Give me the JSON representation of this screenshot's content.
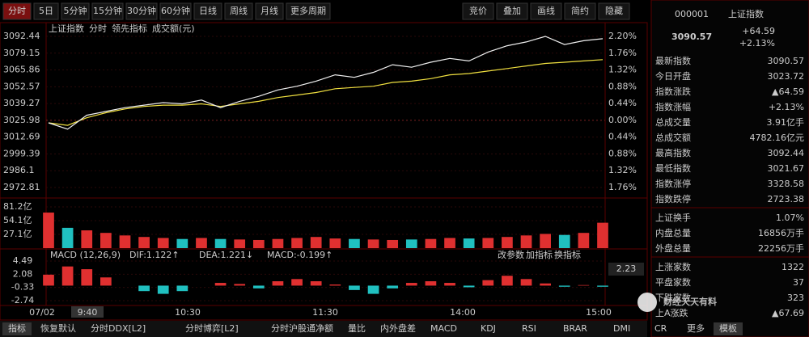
{
  "toolbar": {
    "left": [
      "分时",
      "5日",
      "5分钟",
      "15分钟",
      "30分钟",
      "60分钟",
      "日线",
      "周线",
      "月线",
      "更多周期"
    ],
    "right": [
      "竞价",
      "叠加",
      "画线",
      "简约",
      "隐藏"
    ]
  },
  "legend": [
    "上证指数",
    "分时",
    "领先指标",
    "成交额(元)"
  ],
  "price_axis": [
    3092.44,
    3079.15,
    3065.86,
    3052.57,
    3039.27,
    3025.98,
    3012.69,
    2999.39,
    2986.1,
    2972.81
  ],
  "pct_axis": [
    "2.20%",
    "1.76%",
    "1.32%",
    "0.88%",
    "0.44%",
    "0.00%",
    "0.44%",
    "0.88%",
    "1.32%",
    "1.76%"
  ],
  "price": {
    "values": [
      3024,
      3019,
      3030,
      3033,
      3036,
      3038,
      3040,
      3039,
      3042,
      3036,
      3041,
      3045,
      3050,
      3053,
      3057,
      3062,
      3060,
      3064,
      3070,
      3068,
      3072,
      3075,
      3073,
      3080,
      3085,
      3088,
      3092.44,
      3086,
      3089,
      3090.57
    ]
  },
  "avg": {
    "values": [
      3024,
      3022,
      3028,
      3032,
      3035,
      3037,
      3038,
      3038,
      3039,
      3037,
      3039,
      3041,
      3044,
      3046,
      3048,
      3051,
      3052,
      3053,
      3056,
      3057,
      3059,
      3062,
      3063,
      3065,
      3067,
      3069,
      3071,
      3072,
      3073,
      3074
    ]
  },
  "volume_axis": [
    {
      "value": 81.2,
      "label": "81.2亿"
    },
    {
      "value": 54.1,
      "label": "54.1亿"
    },
    {
      "value": 27.1,
      "label": "27.1亿"
    }
  ],
  "volume": {
    "values": [
      70,
      40,
      35,
      30,
      25,
      22,
      20,
      18,
      20,
      18,
      17,
      16,
      18,
      20,
      22,
      19,
      18,
      17,
      16,
      17,
      18,
      20,
      19,
      20,
      22,
      25,
      28,
      26,
      30,
      50
    ]
  },
  "macd_axis": [
    4.49,
    2.08,
    -0.33,
    -2.74
  ],
  "macd_info": [
    "MACD (12,26,9)",
    "DIF:1.122↑",
    "DEA:1.221↓",
    "MACD:-0.199↑"
  ],
  "macd_tools": [
    "改参数",
    "加指标",
    "换指标"
  ],
  "macd_side": "2.23",
  "macd": {
    "values": [
      2,
      3.5,
      3,
      1.5,
      0,
      -1,
      -1.5,
      -1,
      0,
      0.5,
      0.3,
      -0.5,
      0.8,
      1.2,
      0.8,
      0.2,
      -0.8,
      -1.5,
      -0.5,
      0.5,
      0.8,
      0.5,
      -0.3,
      1,
      1.8,
      1.2,
      0.4,
      -0.2,
      0.1,
      -0.2
    ]
  },
  "times": [
    "07/02",
    "9:40",
    "10:30",
    "11:30",
    "14:00",
    "15:00"
  ],
  "quote": {
    "code": "000001",
    "name": "上证指数",
    "price": "3090.57",
    "change": "+64.59",
    "pct": "+2.13%"
  },
  "rows": [
    {
      "label": "最新指数",
      "value": "3090.57",
      "color": "#ff4040"
    },
    {
      "label": "今日开盘",
      "value": "3023.72",
      "color": "#00e060"
    },
    {
      "label": "指数涨跌",
      "value": "▲64.59",
      "color": "#ff4040"
    },
    {
      "label": "指数涨幅",
      "value": "+2.13%",
      "color": "#ff4040"
    },
    {
      "label": "总成交量",
      "value": "3.91亿手",
      "color": "#e0e0e0"
    },
    {
      "label": "总成交额",
      "value": "4782.16亿元",
      "color": "#40e0e0"
    },
    {
      "label": "最高指数",
      "value": "3092.44",
      "color": "#ff4040"
    },
    {
      "label": "最低指数",
      "value": "3021.67",
      "color": "#00e060"
    },
    {
      "label": "指数涨停",
      "value": "3328.58",
      "color": "#ff4040"
    },
    {
      "label": "指数跌停",
      "value": "2723.38",
      "color": "#00e060"
    },
    {
      "label": "上证换手",
      "value": "1.07%",
      "color": "#e0e0e0"
    },
    {
      "label": "内盘总量",
      "value": "16856万手",
      "color": "#00e060"
    },
    {
      "label": "外盘总量",
      "value": "22256万手",
      "color": "#ff4040"
    },
    {
      "label": "上涨家数",
      "value": "1322",
      "color": "#ff4040"
    },
    {
      "label": "平盘家数",
      "value": "37",
      "color": "#e0e0e0"
    },
    {
      "label": "下跌家数",
      "value": "323",
      "color": "#00e060"
    },
    {
      "label": "上A涨跌",
      "value": "▲67.69",
      "color": "#ff4040"
    }
  ],
  "bottom_tabs": [
    "指标",
    "恢复默认",
    "分时DDX[L2]",
    "分时博弈[L2]",
    "分时沪股通净额",
    "量比",
    "内外盘差",
    "MACD",
    "KDJ",
    "RSI",
    "BRAR",
    "DMI",
    "CR",
    "更多",
    "模板"
  ],
  "watermark": "财经天天有料"
}
